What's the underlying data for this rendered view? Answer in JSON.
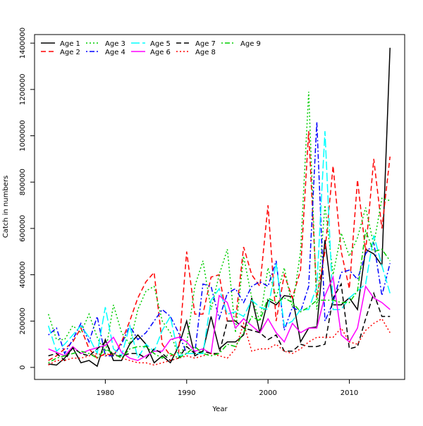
{
  "chart_data": {
    "type": "line",
    "xlabel": "Year",
    "ylabel": "Catch in numbers",
    "xlim": [
      1971.3,
      2016.8
    ],
    "ylim": [
      -52000,
      1437000
    ],
    "xticks": [
      1980,
      1990,
      2000,
      2010
    ],
    "yticks": [
      0,
      200000,
      400000,
      600000,
      800000,
      1000000,
      1200000,
      1400000
    ],
    "x": [
      1973,
      1974,
      1975,
      1976,
      1977,
      1978,
      1979,
      1980,
      1981,
      1982,
      1983,
      1984,
      1985,
      1986,
      1987,
      1988,
      1989,
      1990,
      1991,
      1992,
      1993,
      1994,
      1995,
      1996,
      1997,
      1998,
      1999,
      2000,
      2001,
      2002,
      2003,
      2004,
      2005,
      2006,
      2007,
      2008,
      2009,
      2010,
      2011,
      2012,
      2013,
      2014,
      2015
    ],
    "legend": "top-left",
    "series": [
      {
        "name": "Age 1",
        "color": "#000000",
        "dash": "solid",
        "values": [
          15000,
          10000,
          40000,
          85000,
          20000,
          30000,
          5000,
          120000,
          30000,
          30000,
          100000,
          140000,
          100000,
          20000,
          50000,
          20000,
          90000,
          200000,
          50000,
          70000,
          220000,
          80000,
          110000,
          110000,
          140000,
          300000,
          150000,
          290000,
          270000,
          310000,
          305000,
          110000,
          170000,
          175000,
          550000,
          270000,
          270000,
          300000,
          250000,
          510000,
          490000,
          440000,
          1380000
        ]
      },
      {
        "name": "Age 2",
        "color": "#ff0000",
        "dash": "dashed",
        "values": [
          30000,
          50000,
          80000,
          110000,
          170000,
          80000,
          40000,
          60000,
          50000,
          110000,
          200000,
          300000,
          370000,
          410000,
          100000,
          50000,
          60000,
          500000,
          230000,
          230000,
          390000,
          400000,
          200000,
          200000,
          520000,
          400000,
          350000,
          700000,
          200000,
          400000,
          300000,
          420000,
          1020000,
          300000,
          500000,
          870000,
          500000,
          340000,
          810000,
          500000,
          900000,
          600000,
          910000
        ]
      },
      {
        "name": "Age 3",
        "color": "#00cd00",
        "dash": "dotted",
        "values": [
          230000,
          120000,
          120000,
          180000,
          150000,
          230000,
          130000,
          60000,
          270000,
          150000,
          100000,
          250000,
          330000,
          350000,
          200000,
          150000,
          50000,
          100000,
          350000,
          460000,
          250000,
          400000,
          510000,
          150000,
          480000,
          300000,
          200000,
          430000,
          300000,
          430000,
          260000,
          500000,
          1190000,
          250000,
          700000,
          400000,
          580000,
          480000,
          560000,
          690000,
          530000,
          730000,
          720000
        ]
      },
      {
        "name": "Age 4",
        "color": "#0000ff",
        "dash": "dotdash",
        "values": [
          140000,
          170000,
          60000,
          120000,
          190000,
          110000,
          220000,
          50000,
          50000,
          100000,
          180000,
          120000,
          150000,
          200000,
          250000,
          220000,
          150000,
          60000,
          60000,
          360000,
          350000,
          210000,
          320000,
          340000,
          280000,
          350000,
          370000,
          350000,
          460000,
          160000,
          260000,
          240000,
          350000,
          1060000,
          200000,
          280000,
          410000,
          420000,
          380000,
          490000,
          540000,
          310000,
          450000
        ]
      },
      {
        "name": "Age 5",
        "color": "#00ffff",
        "dash": "longdash",
        "values": [
          180000,
          70000,
          100000,
          140000,
          180000,
          130000,
          60000,
          260000,
          80000,
          50000,
          180000,
          40000,
          100000,
          70000,
          160000,
          220000,
          50000,
          60000,
          60000,
          60000,
          290000,
          340000,
          230000,
          240000,
          220000,
          290000,
          260000,
          250000,
          450000,
          180000,
          200000,
          250000,
          250000,
          350000,
          1020000,
          250000,
          250000,
          300000,
          330000,
          360000,
          570000,
          440000,
          320000
        ]
      },
      {
        "name": "Age 6",
        "color": "#ff00ff",
        "dash": "solid",
        "values": [
          80000,
          65000,
          50000,
          90000,
          60000,
          75000,
          85000,
          95000,
          130000,
          65000,
          40000,
          30000,
          50000,
          70000,
          70000,
          120000,
          130000,
          110000,
          70000,
          80000,
          60000,
          310000,
          280000,
          170000,
          210000,
          180000,
          150000,
          210000,
          150000,
          110000,
          190000,
          150000,
          170000,
          170000,
          310000,
          390000,
          140000,
          110000,
          170000,
          350000,
          300000,
          280000,
          250000
        ]
      },
      {
        "name": "Age 7",
        "color": "#000000",
        "dash": "dashed",
        "values": [
          50000,
          60000,
          30000,
          85000,
          60000,
          50000,
          80000,
          110000,
          50000,
          50000,
          60000,
          60000,
          40000,
          80000,
          60000,
          30000,
          40000,
          90000,
          60000,
          70000,
          60000,
          60000,
          200000,
          200000,
          170000,
          160000,
          150000,
          120000,
          140000,
          70000,
          70000,
          100000,
          90000,
          90000,
          100000,
          300000,
          360000,
          80000,
          90000,
          210000,
          320000,
          220000,
          220000
        ]
      },
      {
        "name": "Age 8",
        "color": "#ff0000",
        "dash": "dotted",
        "values": [
          10000,
          30000,
          30000,
          40000,
          40000,
          50000,
          60000,
          50000,
          60000,
          40000,
          30000,
          20000,
          20000,
          10000,
          20000,
          30000,
          40000,
          50000,
          40000,
          50000,
          60000,
          50000,
          40000,
          80000,
          190000,
          70000,
          80000,
          80000,
          100000,
          70000,
          60000,
          80000,
          110000,
          130000,
          130000,
          130000,
          170000,
          110000,
          100000,
          160000,
          190000,
          210000,
          150000
        ]
      },
      {
        "name": "Age 9",
        "color": "#00cd00",
        "dash": "dotdash",
        "values": [
          20000,
          40000,
          50000,
          60000,
          70000,
          60000,
          40000,
          80000,
          60000,
          40000,
          80000,
          90000,
          90000,
          60000,
          40000,
          60000,
          40000,
          60000,
          90000,
          60000,
          50000,
          60000,
          100000,
          90000,
          150000,
          220000,
          200000,
          300000,
          280000,
          300000,
          280000,
          240000,
          260000,
          290000,
          290000,
          290000,
          280000,
          280000,
          330000,
          590000,
          500000,
          510000,
          460000
        ]
      }
    ]
  }
}
